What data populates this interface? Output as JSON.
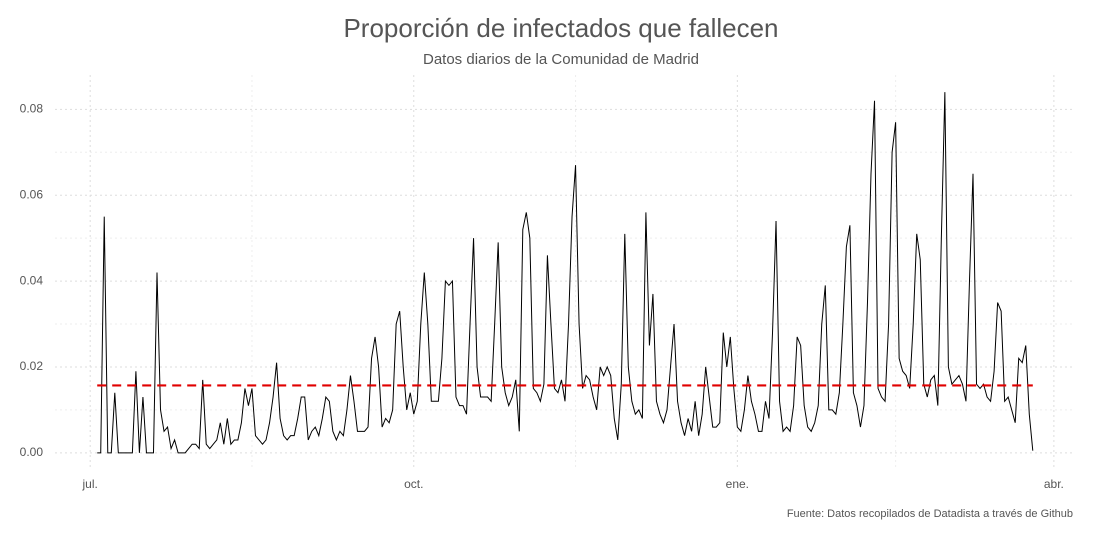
{
  "chart_data": {
    "type": "line",
    "title": "Proporción de infectados que fallecen",
    "subtitle": "Datos diarios de la Comunidad de Madrid",
    "caption": "Fuente: Datos recopilados de Datadista a través de Github",
    "grid": true,
    "xlim": [
      -10,
      280
    ],
    "ylim": [
      -0.004,
      0.088
    ],
    "xticks": [
      {
        "value": 0,
        "label": "jul."
      },
      {
        "value": 92,
        "label": "oct."
      },
      {
        "value": 184,
        "label": "ene."
      },
      {
        "value": 274,
        "label": "abr."
      }
    ],
    "yticks": [
      {
        "value": 0,
        "label": "0.00"
      },
      {
        "value": 0.02,
        "label": "0.02"
      },
      {
        "value": 0.04,
        "label": "0.04"
      },
      {
        "value": 0.06,
        "label": "0.06"
      },
      {
        "value": 0.08,
        "label": "0.08"
      }
    ],
    "reference_line": {
      "value": 0.0157,
      "color": "#e00000"
    },
    "series": [
      {
        "color": "#000000",
        "x": [
          2,
          3,
          4,
          5,
          6,
          7,
          8,
          9,
          10,
          11,
          12,
          13,
          14,
          15,
          16,
          17,
          18,
          19,
          20,
          21,
          22,
          23,
          24,
          25,
          26,
          27,
          28,
          29,
          30,
          31,
          32,
          33,
          34,
          35,
          36,
          37,
          38,
          39,
          40,
          41,
          42,
          43,
          44,
          45,
          46,
          47,
          48,
          49,
          50,
          51,
          52,
          53,
          54,
          55,
          56,
          57,
          58,
          59,
          60,
          61,
          62,
          63,
          64,
          65,
          66,
          67,
          68,
          69,
          70,
          71,
          72,
          73,
          74,
          75,
          76,
          77,
          78,
          79,
          80,
          81,
          82,
          83,
          84,
          85,
          86,
          87,
          88,
          89,
          90,
          91,
          92,
          93,
          94,
          95,
          96,
          97,
          98,
          99,
          100,
          101,
          102,
          103,
          104,
          105,
          106,
          107,
          108,
          109,
          110,
          111,
          112,
          113,
          114,
          115,
          116,
          117,
          118,
          119,
          120,
          121,
          122,
          123,
          124,
          125,
          126,
          127,
          128,
          129,
          130,
          131,
          132,
          133,
          134,
          135,
          136,
          137,
          138,
          139,
          140,
          141,
          142,
          143,
          144,
          145,
          146,
          147,
          148,
          149,
          150,
          151,
          152,
          153,
          154,
          155,
          156,
          157,
          158,
          159,
          160,
          161,
          162,
          163,
          164,
          165,
          166,
          167,
          168,
          169,
          170,
          171,
          172,
          173,
          174,
          175,
          176,
          177,
          178,
          179,
          180,
          181,
          182,
          183,
          184,
          185,
          186,
          187,
          188,
          189,
          190,
          191,
          192,
          193,
          194,
          195,
          196,
          197,
          198,
          199,
          200,
          201,
          202,
          203,
          204,
          205,
          206,
          207,
          208,
          209,
          210,
          211,
          212,
          213,
          214,
          215,
          216,
          217,
          218,
          219,
          220,
          221,
          222,
          223,
          224,
          225,
          226,
          227,
          228,
          229,
          230,
          231,
          232,
          233,
          234,
          235,
          236,
          237,
          238,
          239,
          240,
          241,
          242,
          243,
          244,
          245,
          246,
          247,
          248,
          249,
          250,
          251,
          252,
          253,
          254,
          255,
          256,
          257,
          258,
          259,
          260,
          261,
          262,
          263,
          264,
          265,
          266,
          267,
          268
        ],
        "values": [
          0,
          0,
          0.055,
          0,
          0,
          0.014,
          0,
          0,
          0,
          0,
          0,
          0.019,
          0,
          0.013,
          0,
          0,
          0,
          0.042,
          0.01,
          0.005,
          0.006,
          0.001,
          0.003,
          0,
          0,
          0,
          0.001,
          0.002,
          0.002,
          0.001,
          0.017,
          0.002,
          0.001,
          0.002,
          0.003,
          0.007,
          0.002,
          0.008,
          0.002,
          0.003,
          0.003,
          0.007,
          0.015,
          0.011,
          0.015,
          0.004,
          0.003,
          0.002,
          0.003,
          0.007,
          0.013,
          0.021,
          0.008,
          0.004,
          0.003,
          0.004,
          0.004,
          0.008,
          0.013,
          0.013,
          0.003,
          0.005,
          0.006,
          0.004,
          0.008,
          0.013,
          0.012,
          0.005,
          0.003,
          0.005,
          0.004,
          0.01,
          0.018,
          0.012,
          0.005,
          0.005,
          0.005,
          0.006,
          0.022,
          0.027,
          0.02,
          0.006,
          0.008,
          0.007,
          0.01,
          0.03,
          0.033,
          0.02,
          0.01,
          0.014,
          0.009,
          0.012,
          0.03,
          0.042,
          0.03,
          0.012,
          0.012,
          0.012,
          0.022,
          0.04,
          0.039,
          0.04,
          0.013,
          0.011,
          0.011,
          0.009,
          0.03,
          0.05,
          0.02,
          0.013,
          0.013,
          0.013,
          0.012,
          0.03,
          0.049,
          0.02,
          0.014,
          0.011,
          0.013,
          0.017,
          0.005,
          0.052,
          0.056,
          0.05,
          0.015,
          0.014,
          0.012,
          0.016,
          0.046,
          0.03,
          0.015,
          0.014,
          0.017,
          0.012,
          0.03,
          0.055,
          0.067,
          0.03,
          0.015,
          0.018,
          0.017,
          0.013,
          0.01,
          0.02,
          0.018,
          0.02,
          0.018,
          0.008,
          0.003,
          0.016,
          0.051,
          0.02,
          0.012,
          0.009,
          0.01,
          0.008,
          0.056,
          0.025,
          0.037,
          0.012,
          0.009,
          0.007,
          0.01,
          0.02,
          0.03,
          0.012,
          0.007,
          0.004,
          0.008,
          0.005,
          0.012,
          0.004,
          0.009,
          0.02,
          0.013,
          0.006,
          0.006,
          0.007,
          0.028,
          0.02,
          0.027,
          0.015,
          0.006,
          0.005,
          0.01,
          0.018,
          0.012,
          0.009,
          0.005,
          0.005,
          0.012,
          0.008,
          0.028,
          0.054,
          0.012,
          0.005,
          0.006,
          0.005,
          0.011,
          0.027,
          0.025,
          0.011,
          0.006,
          0.005,
          0.007,
          0.011,
          0.03,
          0.039,
          0.01,
          0.01,
          0.009,
          0.014,
          0.03,
          0.048,
          0.053,
          0.014,
          0.011,
          0.006,
          0.011,
          0.035,
          0.065,
          0.082,
          0.015,
          0.013,
          0.012,
          0.03,
          0.07,
          0.077,
          0.022,
          0.019,
          0.018,
          0.015,
          0.03,
          0.051,
          0.045,
          0.016,
          0.013,
          0.017,
          0.018,
          0.011,
          0.05,
          0.084,
          0.02,
          0.016,
          0.017,
          0.018,
          0.016,
          0.012,
          0.04,
          0.065,
          0.016,
          0.015,
          0.016,
          0.013,
          0.012,
          0.019,
          0.035,
          0.033,
          0.012,
          0.013,
          0.01,
          0.007,
          0.022,
          0.021,
          0.025,
          0.009,
          0.0005
        ]
      }
    ]
  }
}
